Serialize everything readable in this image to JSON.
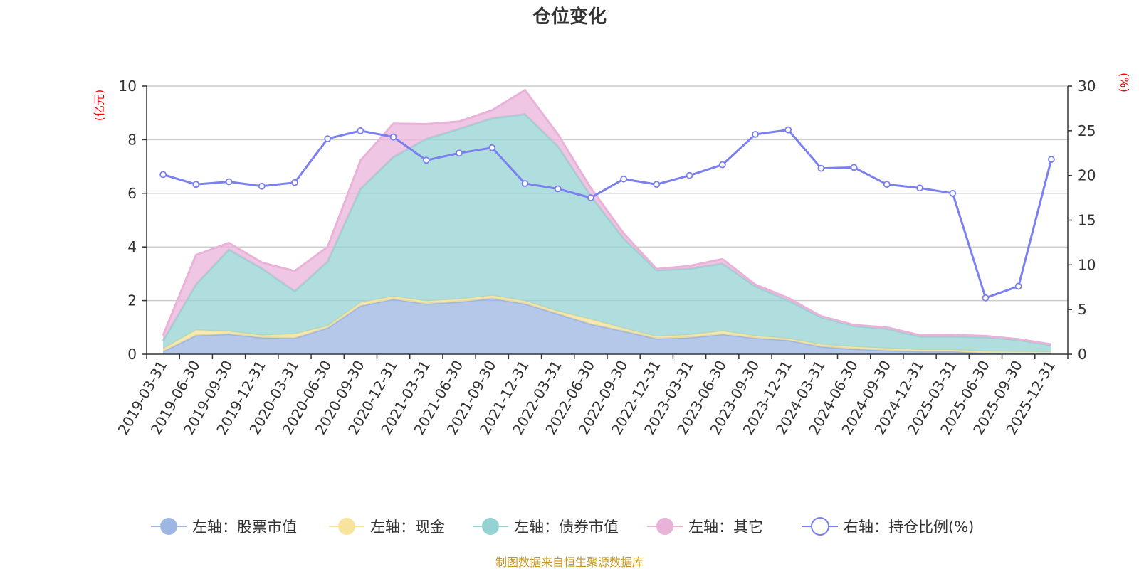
{
  "colors": {
    "stock": "#9db6e2",
    "cash": "#f7e39b",
    "bond": "#95d3d3",
    "other": "#e9b3d9",
    "ratio": "#7b7ff0",
    "footer": "#c8961e",
    "axis_unit": "#ff0000"
  },
  "chart_data": {
    "type": "area",
    "title": "仓位变化",
    "left_axis_unit": "(亿元)",
    "right_axis_unit": "(%)",
    "left_ylim": [
      0,
      10
    ],
    "right_ylim": [
      0,
      30
    ],
    "left_ticks": [
      0,
      2,
      4,
      6,
      8,
      10
    ],
    "right_ticks": [
      0,
      5,
      10,
      15,
      20,
      25,
      30
    ],
    "categories": [
      "2019-03-31",
      "2019-06-30",
      "2019-09-30",
      "2019-12-31",
      "2020-03-31",
      "2020-06-30",
      "2020-09-30",
      "2020-12-31",
      "2021-03-31",
      "2021-06-30",
      "2021-09-30",
      "2021-12-31",
      "2022-03-31",
      "2022-06-30",
      "2022-09-30",
      "2022-12-31",
      "2023-03-31",
      "2023-06-30",
      "2023-09-30",
      "2023-12-31",
      "2024-03-31",
      "2024-06-30",
      "2024-09-30",
      "2024-12-31",
      "2025-03-31",
      "2025-06-30",
      "2025-09-30",
      "2025-12-31"
    ],
    "stacked_series": [
      {
        "key": "stock",
        "name": "左轴：股票市值",
        "values": [
          0.1,
          0.7,
          0.75,
          0.62,
          0.6,
          0.98,
          1.8,
          2.05,
          1.88,
          1.95,
          2.08,
          1.88,
          1.5,
          1.12,
          0.86,
          0.58,
          0.62,
          0.74,
          0.6,
          0.52,
          0.28,
          0.19,
          0.14,
          0.1,
          0.1,
          0.04,
          0.04,
          0.04
        ]
      },
      {
        "key": "cash",
        "name": "左轴：现金",
        "values": [
          0.1,
          0.2,
          0.1,
          0.08,
          0.15,
          0.07,
          0.12,
          0.1,
          0.1,
          0.1,
          0.1,
          0.1,
          0.1,
          0.18,
          0.1,
          0.08,
          0.1,
          0.12,
          0.08,
          0.06,
          0.08,
          0.08,
          0.08,
          0.06,
          0.06,
          0.06,
          0.05,
          0.04
        ]
      },
      {
        "key": "bond",
        "name": "左轴：债券市值",
        "values": [
          0.3,
          1.7,
          3.05,
          2.5,
          1.6,
          2.4,
          4.25,
          5.2,
          6.05,
          6.35,
          6.62,
          6.97,
          6.15,
          4.6,
          3.35,
          2.47,
          2.47,
          2.52,
          1.85,
          1.42,
          1.02,
          0.78,
          0.73,
          0.5,
          0.5,
          0.53,
          0.44,
          0.26
        ]
      },
      {
        "key": "other",
        "name": "左轴：其它",
        "values": [
          0.2,
          1.1,
          0.25,
          0.22,
          0.75,
          0.55,
          1.05,
          1.25,
          0.55,
          0.28,
          0.3,
          0.9,
          0.45,
          0.3,
          0.19,
          0.05,
          0.1,
          0.17,
          0.07,
          0.1,
          0.04,
          0.04,
          0.05,
          0.05,
          0.06,
          0.05,
          0.03,
          0.03
        ]
      }
    ],
    "line_series": {
      "key": "ratio",
      "name": "右轴：持仓比例(%)",
      "axis": "right",
      "values": [
        20.1,
        19.0,
        19.3,
        18.8,
        19.2,
        24.1,
        25.0,
        24.3,
        21.7,
        22.5,
        23.1,
        19.1,
        18.5,
        17.5,
        19.6,
        19.0,
        20.0,
        21.2,
        24.6,
        25.1,
        20.8,
        20.9,
        19.0,
        18.6,
        18.0,
        6.3,
        7.6,
        21.8
      ]
    },
    "legend": [
      "左轴：股票市值",
      "左轴：现金",
      "左轴：债券市值",
      "左轴：其它",
      "右轴：持仓比例(%)"
    ]
  },
  "footer": "制图数据来自恒生聚源数据库"
}
